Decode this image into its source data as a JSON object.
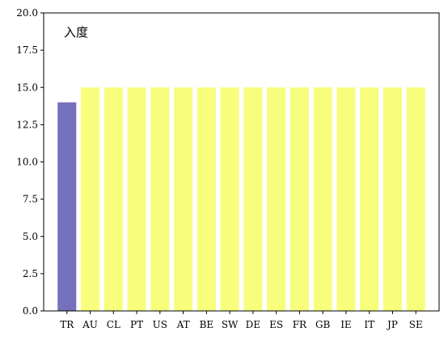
{
  "chart_data": {
    "type": "bar",
    "title": "入度",
    "xlabel": "",
    "ylabel": "",
    "ylim": [
      0,
      20
    ],
    "yticks": [
      "0.0",
      "2.5",
      "5.0",
      "7.5",
      "10.0",
      "12.5",
      "15.0",
      "17.5",
      "20.0"
    ],
    "grid": false,
    "categories": [
      "TR",
      "AU",
      "CL",
      "PT",
      "US",
      "AT",
      "BE",
      "SW",
      "DE",
      "ES",
      "FR",
      "GB",
      "IE",
      "IT",
      "JP",
      "SE"
    ],
    "values": [
      14,
      15,
      15,
      15,
      15,
      15,
      15,
      15,
      15,
      15,
      15,
      15,
      15,
      15,
      15,
      15
    ],
    "colors": [
      "#7570bb",
      "#f7fe7b",
      "#f7fe7b",
      "#f7fe7b",
      "#f7fe7b",
      "#f7fe7b",
      "#f7fe7b",
      "#f7fe7b",
      "#f7fe7b",
      "#f7fe7b",
      "#f7fe7b",
      "#f7fe7b",
      "#f7fe7b",
      "#f7fe7b",
      "#f7fe7b",
      "#f7fe7b"
    ]
  }
}
